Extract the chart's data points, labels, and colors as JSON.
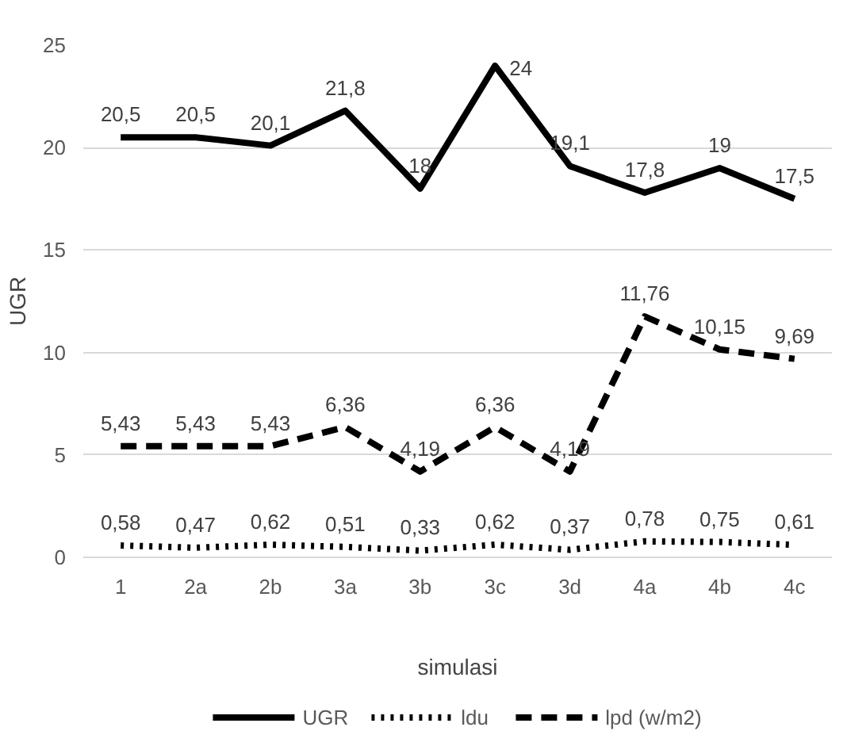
{
  "chart_data": {
    "type": "line",
    "xlabel": "simulasi",
    "ylabel": "UGR",
    "categories": [
      "1",
      "2a",
      "2b",
      "3a",
      "3b",
      "3c",
      "3d",
      "4a",
      "4b",
      "4c"
    ],
    "series": [
      {
        "name": "UGR",
        "color": "#000000",
        "line_style": "solid",
        "values": [
          20.5,
          20.5,
          20.1,
          21.8,
          18,
          24,
          19.1,
          17.8,
          19,
          17.5
        ],
        "value_labels": [
          "20,5",
          "20,5",
          "20,1",
          "21,8",
          "18",
          "24",
          "19,1",
          "17,8",
          "19",
          "17,5"
        ]
      },
      {
        "name": "ldu",
        "color": "#000000",
        "line_style": "dotted",
        "values": [
          0.58,
          0.47,
          0.62,
          0.51,
          0.33,
          0.62,
          0.37,
          0.78,
          0.75,
          0.61
        ],
        "value_labels": [
          "0,58",
          "0,47",
          "0,62",
          "0,51",
          "0,33",
          "0,62",
          "0,37",
          "0,78",
          "0,75",
          "0,61"
        ]
      },
      {
        "name": "lpd (w/m2)",
        "color": "#000000",
        "line_style": "dashed",
        "values": [
          5.43,
          5.43,
          5.43,
          6.36,
          4.19,
          6.36,
          4.19,
          11.76,
          10.15,
          9.69
        ],
        "value_labels": [
          "5,43",
          "5,43",
          "5,43",
          "6,36",
          "4,19",
          "6,36",
          "4,19",
          "11,76",
          "10,15",
          "9,69"
        ]
      }
    ],
    "ylim": [
      0,
      25
    ],
    "yticks": [
      0,
      5,
      10,
      15,
      20,
      25
    ],
    "grid": "y",
    "legend": "bottom",
    "marker": "none"
  }
}
